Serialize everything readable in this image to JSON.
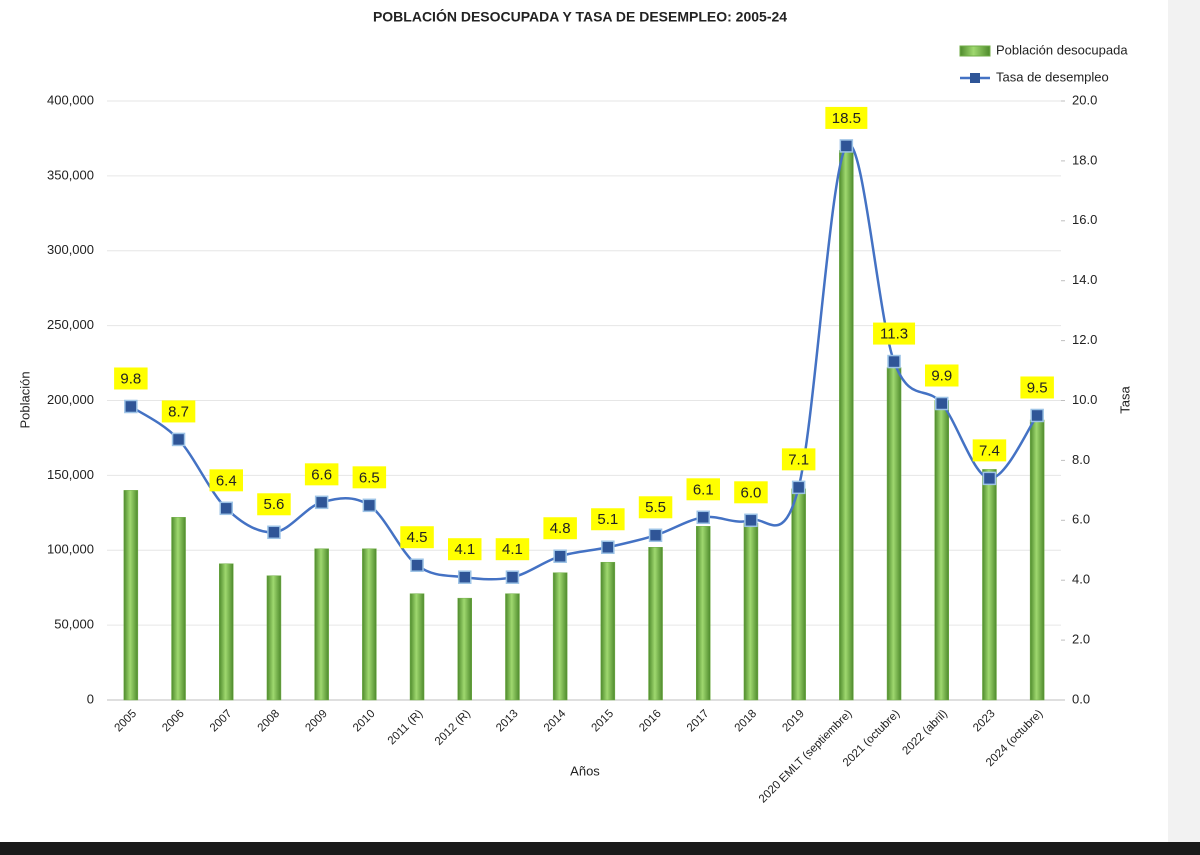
{
  "chart_data": {
    "type": "bar-line",
    "title": "POBLACIÓN DESOCUPADA Y TASA DE DESEMPLEO: 2005-24",
    "x_label": "Años",
    "y_label": "Población",
    "y2_label": "Tasa",
    "legend": "top-right",
    "grid": true,
    "categories": [
      "2005",
      "2006",
      "2007",
      "2008",
      "2009",
      "2010",
      "2011 (R)",
      "2012 (R)",
      "2013",
      "2014",
      "2015",
      "2016",
      "2017",
      "2018",
      "2019",
      "2020 EMLT (septiembre)",
      "2021 (octubre)",
      "2022 (abril)",
      "2023",
      "2024 (octubre)"
    ],
    "ylim": [
      0,
      400000
    ],
    "yticks": [
      0,
      {
        "value": 50000,
        "label": "50,000"
      },
      {
        "value": 100000,
        "label": "100,000"
      },
      {
        "value": 150000,
        "label": "150,000"
      },
      {
        "value": 200000,
        "label": "200,000"
      },
      {
        "value": 250000,
        "label": "250,000"
      },
      {
        "value": 300000,
        "label": "300,000"
      },
      {
        "value": 350000,
        "label": "350,000"
      },
      {
        "value": 400000,
        "label": "400,000"
      }
    ],
    "y2lim": [
      0,
      20
    ],
    "y2ticks": [
      {
        "value": 0,
        "label": "0.0"
      },
      {
        "value": 2,
        "label": "2.0"
      },
      {
        "value": 4,
        "label": "4.0"
      },
      {
        "value": 6,
        "label": "6.0"
      },
      {
        "value": 8,
        "label": "8.0"
      },
      {
        "value": 10,
        "label": "10.0"
      },
      {
        "value": 12,
        "label": "12.0"
      },
      {
        "value": 14,
        "label": "14.0"
      },
      {
        "value": 16,
        "label": "16.0"
      },
      {
        "value": 18,
        "label": "18.0"
      },
      {
        "value": 20,
        "label": "20.0"
      }
    ],
    "series": [
      {
        "name": "Población desocupada",
        "type": "bar",
        "color": "#70ad47",
        "values": [
          140000,
          122000,
          91000,
          83000,
          101000,
          101000,
          71000,
          68000,
          71000,
          85000,
          92000,
          102000,
          116000,
          118000,
          141000,
          367000,
          222000,
          200000,
          154000,
          187000
        ]
      },
      {
        "name": "Tasa de desempleo",
        "type": "line",
        "axis": "y2",
        "color": "#4472c4",
        "marker_color": "#2f5597",
        "label_color": "#ffff00",
        "values": [
          9.8,
          8.7,
          6.4,
          5.6,
          6.6,
          6.5,
          4.5,
          4.1,
          4.1,
          4.8,
          5.1,
          5.5,
          6.1,
          6.0,
          7.1,
          18.5,
          11.3,
          9.9,
          7.4,
          9.5
        ],
        "value_labels": [
          "9.8",
          "8.7",
          "6.4",
          "5.6",
          "6.6",
          "6.5",
          "4.5",
          "4.1",
          "4.1",
          "4.8",
          "5.1",
          "5.5",
          "6.1",
          "6.0",
          "7.1",
          "18.5",
          "11.3",
          "9.9",
          "7.4",
          "9.5"
        ]
      }
    ]
  }
}
